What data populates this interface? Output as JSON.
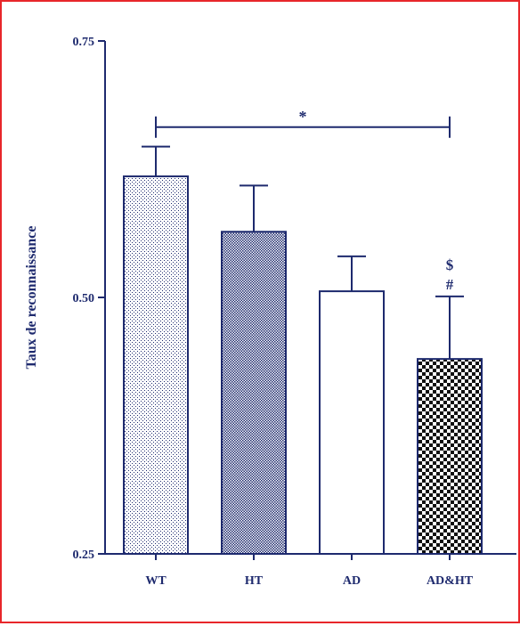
{
  "chart_data": {
    "type": "bar",
    "title": "",
    "xlabel": "",
    "ylabel": "Taux de reconnaissance",
    "ylim": [
      0.25,
      0.75
    ],
    "yticks": [
      "0.25",
      "0.50",
      "0.75"
    ],
    "categories": [
      "WT",
      "HT",
      "AD",
      "AD&HT"
    ],
    "values": [
      0.618,
      0.564,
      0.506,
      0.44
    ],
    "errors": [
      0.029,
      0.045,
      0.034,
      0.061
    ],
    "bar_patterns": [
      "fine-dots",
      "dense-check",
      "none",
      "coarse-check"
    ],
    "bracket": {
      "from": "WT",
      "to": "AD&HT",
      "y": 0.666,
      "label": "*"
    },
    "annotations": [
      {
        "category": "AD&HT",
        "labels": [
          "$",
          "#"
        ]
      }
    ],
    "grid": false,
    "legend": "none"
  },
  "colors": {
    "axis": "#1e2a6e",
    "frame": "#e8262a",
    "bar_fill": "#ffffff"
  }
}
